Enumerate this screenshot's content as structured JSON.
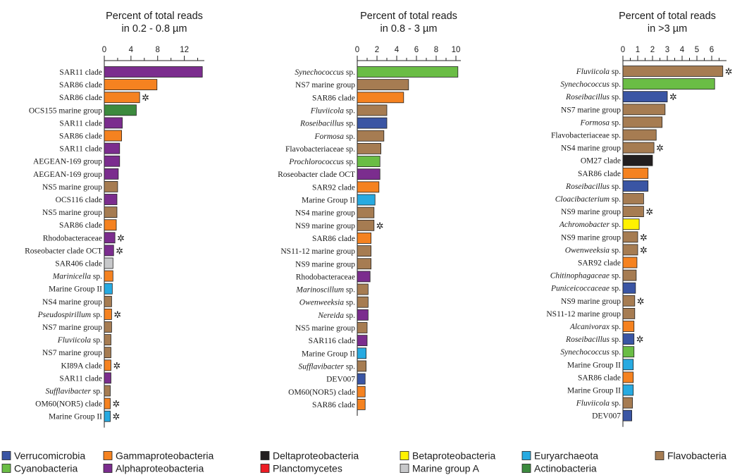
{
  "chart_data": [
    {
      "type": "bar",
      "orientation": "horizontal",
      "title_lines": [
        "Percent of total reads",
        "in 0.2 - 0.8 µm"
      ],
      "xlim": [
        0,
        15
      ],
      "ticks": [
        0,
        4,
        8,
        12
      ],
      "minor_ticks": [
        2,
        6,
        10,
        14
      ],
      "bars": [
        {
          "label": "SAR11 clade",
          "italic": false,
          "value": 14.7,
          "group": "Alphaproteobacteria",
          "star": false
        },
        {
          "label": "SAR86 clade",
          "italic": false,
          "value": 7.9,
          "group": "Gammaproteobacteria",
          "star": false
        },
        {
          "label": "SAR86 clade",
          "italic": false,
          "value": 5.3,
          "group": "Gammaproteobacteria",
          "star": true
        },
        {
          "label": "OCS155 marine group",
          "italic": false,
          "value": 4.8,
          "group": "Actinobacteria",
          "star": false
        },
        {
          "label": "SAR11 clade",
          "italic": false,
          "value": 2.7,
          "group": "Alphaproteobacteria",
          "star": false
        },
        {
          "label": "SAR86 clade",
          "italic": false,
          "value": 2.6,
          "group": "Gammaproteobacteria",
          "star": false
        },
        {
          "label": "SAR11 clade",
          "italic": false,
          "value": 2.3,
          "group": "Alphaproteobacteria",
          "star": false
        },
        {
          "label": "AEGEAN-169 group",
          "italic": false,
          "value": 2.3,
          "group": "Alphaproteobacteria",
          "star": false
        },
        {
          "label": "AEGEAN-169 group",
          "italic": false,
          "value": 2.1,
          "group": "Alphaproteobacteria",
          "star": false
        },
        {
          "label": "NS5 marine group",
          "italic": false,
          "value": 2.0,
          "group": "Flavobacteria",
          "star": false
        },
        {
          "label": "OCS116 clade",
          "italic": false,
          "value": 1.9,
          "group": "Alphaproteobacteria",
          "star": false
        },
        {
          "label": "NS5 marine group",
          "italic": false,
          "value": 1.9,
          "group": "Flavobacteria",
          "star": false
        },
        {
          "label": "SAR86 clade",
          "italic": false,
          "value": 1.8,
          "group": "Gammaproteobacteria",
          "star": false
        },
        {
          "label": "Rhodobacteraceae",
          "italic": false,
          "value": 1.6,
          "group": "Alphaproteobacteria",
          "star": true
        },
        {
          "label": "Roseobacter clade OCT",
          "italic": false,
          "value": 1.4,
          "group": "Alphaproteobacteria",
          "star": true
        },
        {
          "label": "SAR406 clade",
          "italic": false,
          "value": 1.3,
          "group": "Marine group A",
          "star": false
        },
        {
          "label": "Marinicella",
          "italic": true,
          "suffix": " sp.",
          "value": 1.3,
          "group": "Gammaproteobacteria",
          "star": false
        },
        {
          "label": "Marine Group II",
          "italic": false,
          "value": 1.2,
          "group": "Euryarchaeota",
          "star": false
        },
        {
          "label": "NS4 marine group",
          "italic": false,
          "value": 1.1,
          "group": "Flavobacteria",
          "star": false
        },
        {
          "label": "Pseudospirillum",
          "italic": true,
          "suffix": " sp.",
          "value": 1.1,
          "group": "Gammaproteobacteria",
          "star": true
        },
        {
          "label": "NS7 marine group",
          "italic": false,
          "value": 1.1,
          "group": "Flavobacteria",
          "star": false
        },
        {
          "label": "Fluviicola",
          "italic": true,
          "suffix": " sp.",
          "value": 1.0,
          "group": "Flavobacteria",
          "star": false
        },
        {
          "label": "NS7 marine group",
          "italic": false,
          "value": 1.0,
          "group": "Flavobacteria",
          "star": false
        },
        {
          "label": "KI89A clade",
          "italic": false,
          "value": 1.0,
          "group": "Gammaproteobacteria",
          "star": true
        },
        {
          "label": "SAR11 clade",
          "italic": false,
          "value": 1.0,
          "group": "Alphaproteobacteria",
          "star": false
        },
        {
          "label": "Sufflavibacter",
          "italic": true,
          "suffix": " sp.",
          "value": 0.9,
          "group": "Flavobacteria",
          "star": false
        },
        {
          "label": "OM60(NOR5) clade",
          "italic": false,
          "value": 0.9,
          "group": "Gammaproteobacteria",
          "star": true
        },
        {
          "label": "Marine Group II",
          "italic": false,
          "value": 0.9,
          "group": "Euryarchaeota",
          "star": true
        }
      ]
    },
    {
      "type": "bar",
      "orientation": "horizontal",
      "title_lines": [
        "Percent of total reads",
        "in 0.8 - 3 µm"
      ],
      "xlim": [
        0,
        10.5
      ],
      "ticks": [
        0,
        2,
        4,
        6,
        8,
        10
      ],
      "minor_ticks": [
        1,
        3,
        5,
        7,
        9
      ],
      "bars": [
        {
          "label": "Synechococcus",
          "italic": true,
          "suffix": " sp.",
          "value": 10.2,
          "group": "Cyanobacteria",
          "star": false
        },
        {
          "label": "NS7 marine group",
          "italic": false,
          "value": 5.2,
          "group": "Flavobacteria",
          "star": false
        },
        {
          "label": "SAR86 clade",
          "italic": false,
          "value": 4.7,
          "group": "Gammaproteobacteria",
          "star": false
        },
        {
          "label": "Fluviicola",
          "italic": true,
          "suffix": " sp.",
          "value": 3.0,
          "group": "Flavobacteria",
          "star": false
        },
        {
          "label": "Roseibacillus",
          "italic": true,
          "suffix": " sp.",
          "value": 3.0,
          "group": "Verrucomicrobia",
          "star": false
        },
        {
          "label": "Formosa",
          "italic": true,
          "suffix": " sp.",
          "value": 2.7,
          "group": "Flavobacteria",
          "star": false
        },
        {
          "label": "Flavobacteriaceae sp.",
          "italic": false,
          "value": 2.4,
          "group": "Flavobacteria",
          "star": false
        },
        {
          "label": "Prochlorococcus",
          "italic": true,
          "suffix": " sp.",
          "value": 2.3,
          "group": "Cyanobacteria",
          "star": false
        },
        {
          "label": "Roseobacter clade OCT",
          "italic": false,
          "value": 2.3,
          "group": "Alphaproteobacteria",
          "star": false
        },
        {
          "label": "SAR92 clade",
          "italic": false,
          "value": 2.2,
          "group": "Gammaproteobacteria",
          "star": false
        },
        {
          "label": "Marine Group II",
          "italic": false,
          "value": 1.8,
          "group": "Euryarchaeota",
          "star": false
        },
        {
          "label": "NS4 marine group",
          "italic": false,
          "value": 1.7,
          "group": "Flavobacteria",
          "star": false
        },
        {
          "label": "NS9 marine group",
          "italic": false,
          "value": 1.7,
          "group": "Flavobacteria",
          "star": true
        },
        {
          "label": "SAR86 clade",
          "italic": false,
          "value": 1.4,
          "group": "Gammaproteobacteria",
          "star": false
        },
        {
          "label": "NS11-12 marine group",
          "italic": false,
          "value": 1.4,
          "group": "Flavobacteria",
          "star": false
        },
        {
          "label": "NS9 marine group",
          "italic": false,
          "value": 1.4,
          "group": "Flavobacteria",
          "star": false
        },
        {
          "label": "Rhodobacteraceae",
          "italic": false,
          "value": 1.3,
          "group": "Alphaproteobacteria",
          "star": false
        },
        {
          "label": "Marinoscillum",
          "italic": true,
          "suffix": " sp.",
          "value": 1.1,
          "group": "Flavobacteria",
          "star": false
        },
        {
          "label": "Owenweeksia",
          "italic": true,
          "suffix": " sp.",
          "value": 1.1,
          "group": "Flavobacteria",
          "star": false
        },
        {
          "label": "Nereida",
          "italic": true,
          "suffix": " sp.",
          "value": 1.1,
          "group": "Alphaproteobacteria",
          "star": false
        },
        {
          "label": "NS5 marine group",
          "italic": false,
          "value": 1.0,
          "group": "Flavobacteria",
          "star": false
        },
        {
          "label": "SAR116 clade",
          "italic": false,
          "value": 1.0,
          "group": "Alphaproteobacteria",
          "star": false
        },
        {
          "label": "Marine Group II",
          "italic": false,
          "value": 0.9,
          "group": "Euryarchaeota",
          "star": false
        },
        {
          "label": "Sufflavibacter",
          "italic": true,
          "suffix": " sp.",
          "value": 0.9,
          "group": "Flavobacteria",
          "star": false
        },
        {
          "label": "DEV007",
          "italic": false,
          "value": 0.8,
          "group": "Verrucomicrobia",
          "star": false
        },
        {
          "label": "OM60(NOR5) clade",
          "italic": false,
          "value": 0.8,
          "group": "Gammaproteobacteria",
          "star": false
        },
        {
          "label": "SAR86 clade",
          "italic": false,
          "value": 0.8,
          "group": "Gammaproteobacteria",
          "star": false
        }
      ]
    },
    {
      "type": "bar",
      "orientation": "horizontal",
      "title_lines": [
        "Percent of total reads",
        "in >3 µm"
      ],
      "xlim": [
        0,
        7
      ],
      "ticks": [
        0,
        1,
        2,
        3,
        4,
        5,
        6
      ],
      "minor_ticks": [
        0.5,
        1.5,
        2.5,
        3.5,
        4.5,
        5.5,
        6.5
      ],
      "bars": [
        {
          "label": "Fluviicola",
          "italic": true,
          "suffix": " sp.",
          "value": 6.75,
          "group": "Flavobacteria",
          "star": true
        },
        {
          "label": "Synechococcus",
          "italic": true,
          "suffix": " sp.",
          "value": 6.2,
          "group": "Cyanobacteria",
          "star": false
        },
        {
          "label": "Roseibacillus",
          "italic": true,
          "suffix": " sp.",
          "value": 3.0,
          "group": "Verrucomicrobia",
          "star": true
        },
        {
          "label": "NS7 marine group",
          "italic": false,
          "value": 2.85,
          "group": "Flavobacteria",
          "star": false
        },
        {
          "label": "Formosa",
          "italic": true,
          "suffix": " sp.",
          "value": 2.65,
          "group": "Flavobacteria",
          "star": false
        },
        {
          "label": "Flavobacteriaceae sp.",
          "italic": false,
          "value": 2.25,
          "group": "Flavobacteria",
          "star": false
        },
        {
          "label": "NS4 marine group",
          "italic": false,
          "value": 2.1,
          "group": "Flavobacteria",
          "star": true
        },
        {
          "label": "OM27 clade",
          "italic": false,
          "value": 2.0,
          "group": "Deltaproteobacteria",
          "star": false
        },
        {
          "label": "SAR86 clade",
          "italic": false,
          "value": 1.7,
          "group": "Gammaproteobacteria",
          "star": false
        },
        {
          "label": "Roseibacillus",
          "italic": true,
          "suffix": " sp.",
          "value": 1.7,
          "group": "Verrucomicrobia",
          "star": false
        },
        {
          "label": "Cloacibacterium",
          "italic": true,
          "suffix": " sp.",
          "value": 1.4,
          "group": "Flavobacteria",
          "star": false
        },
        {
          "label": "NS9 marine group",
          "italic": false,
          "value": 1.4,
          "group": "Flavobacteria",
          "star": true
        },
        {
          "label": "Achromobacter",
          "italic": true,
          "suffix": " sp.",
          "value": 1.1,
          "group": "Betaproteobacteria",
          "star": false
        },
        {
          "label": "NS9 marine group",
          "italic": false,
          "value": 1.0,
          "group": "Flavobacteria",
          "star": true
        },
        {
          "label": "Owenweeksia",
          "italic": true,
          "suffix": " sp.",
          "value": 1.0,
          "group": "Flavobacteria",
          "star": true
        },
        {
          "label": "SAR92 clade",
          "italic": false,
          "value": 0.95,
          "group": "Gammaproteobacteria",
          "star": false
        },
        {
          "label": "Chitinophagaceae",
          "italic": true,
          "suffix": " sp.",
          "value": 0.9,
          "group": "Flavobacteria",
          "star": false
        },
        {
          "label": "Puniceicoccaceae",
          "italic": true,
          "suffix": " sp.",
          "value": 0.85,
          "group": "Verrucomicrobia",
          "star": false
        },
        {
          "label": "NS9 marine group",
          "italic": false,
          "value": 0.8,
          "group": "Flavobacteria",
          "star": true
        },
        {
          "label": "NS11-12 marine group",
          "italic": false,
          "value": 0.8,
          "group": "Flavobacteria",
          "star": false
        },
        {
          "label": "Alcanivorax",
          "italic": true,
          "suffix": " sp.",
          "value": 0.75,
          "group": "Gammaproteobacteria",
          "star": false
        },
        {
          "label": "Roseibacillus",
          "italic": true,
          "suffix": " sp.",
          "value": 0.75,
          "group": "Verrucomicrobia",
          "star": true
        },
        {
          "label": "Synechococcus",
          "italic": true,
          "suffix": " sp.",
          "value": 0.75,
          "group": "Cyanobacteria",
          "star": false
        },
        {
          "label": "Marine Group II",
          "italic": false,
          "value": 0.7,
          "group": "Euryarchaeota",
          "star": false
        },
        {
          "label": "SAR86 clade",
          "italic": false,
          "value": 0.7,
          "group": "Gammaproteobacteria",
          "star": false
        },
        {
          "label": "Marine Group II",
          "italic": false,
          "value": 0.7,
          "group": "Euryarchaeota",
          "star": false
        },
        {
          "label": "Fluviicola",
          "italic": true,
          "suffix": " sp.",
          "value": 0.65,
          "group": "Flavobacteria",
          "star": false
        },
        {
          "label": "DEV007",
          "italic": false,
          "value": 0.6,
          "group": "Verrucomicrobia",
          "star": false
        }
      ]
    }
  ],
  "star_symbol": "✲",
  "legend": [
    {
      "name": "Verrucomicrobia",
      "color": "#3a55a4"
    },
    {
      "name": "Gammaproteobacteria",
      "color": "#f58220"
    },
    {
      "name": "Deltaproteobacteria",
      "color": "#231f20"
    },
    {
      "name": "Betaproteobacteria",
      "color": "#fff200"
    },
    {
      "name": "Euryarchaeota",
      "color": "#27aae1"
    },
    {
      "name": "Flavobacteria",
      "color": "#a67c52"
    },
    {
      "name": "Cyanobacteria",
      "color": "#6abd45"
    },
    {
      "name": "Alphaproteobacteria",
      "color": "#7b2d8e"
    },
    {
      "name": "Planctomycetes",
      "color": "#ed1c24"
    },
    {
      "name": "Marine group A",
      "color": "#c7c8ca"
    },
    {
      "name": "Actinobacteria",
      "color": "#3c8a3e"
    }
  ]
}
